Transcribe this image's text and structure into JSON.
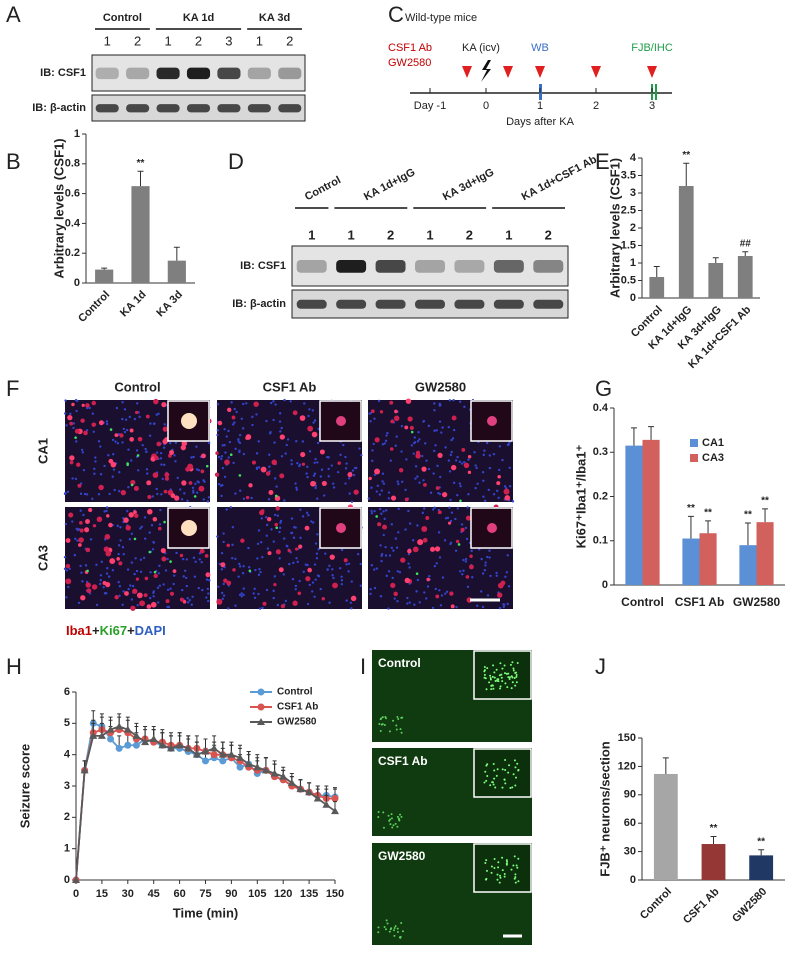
{
  "panel_labels": [
    "A",
    "B",
    "C",
    "D",
    "E",
    "F",
    "G",
    "H",
    "I",
    "J"
  ],
  "blot_a": {
    "groups": [
      "Control",
      "KA 1d",
      "KA 3d"
    ],
    "lanes": [
      "1",
      "2",
      "1",
      "2",
      "3",
      "1",
      "2"
    ],
    "rows": [
      "IB: CSF1",
      "IB: β-actin"
    ]
  },
  "blot_d": {
    "groups": [
      "Control",
      "KA 1d+IgG",
      "KA 3d+IgG",
      "KA 1d+CSF1 Ab"
    ],
    "lanes": [
      "1",
      "1",
      "2",
      "1",
      "2",
      "1",
      "2"
    ],
    "rows": [
      "IB: CSF1",
      "IB: β-actin"
    ]
  },
  "timeline": {
    "title": "Wild-type mice",
    "treatments": [
      "CSF1 Ab",
      "GW2580"
    ],
    "injection": "KA (icv)",
    "assays": [
      "WB",
      "FJB/IHC"
    ],
    "days": [
      "Day -1",
      "0",
      "1",
      "2",
      "3"
    ],
    "axis_label": "Days after KA"
  },
  "micrograph_f": {
    "columns": [
      "Control",
      "CSF1 Ab",
      "GW2580"
    ],
    "rows": [
      "CA1",
      "CA3"
    ],
    "stain": [
      "Iba1",
      "+",
      "Ki67",
      "+",
      "DAPI"
    ]
  },
  "micrograph_i": {
    "labels": [
      "Control",
      "CSF1 Ab",
      "GW2580"
    ]
  },
  "chart_data": [
    {
      "type": "bar",
      "ylabel": "Arbitrary levels (CSF1)",
      "categories": [
        "Control",
        "KA 1d",
        "KA 3d"
      ],
      "values": [
        0.09,
        0.65,
        0.15
      ],
      "errors": [
        0.01,
        0.1,
        0.09
      ],
      "marks": [
        null,
        "**",
        null
      ],
      "color": "#7f7f7f",
      "ylim": [
        0,
        1
      ],
      "yticks": [
        0,
        0.2,
        0.4,
        0.6,
        0.8,
        1
      ]
    },
    {
      "type": "bar",
      "ylabel": "Arbitrary levels (CSF1)",
      "categories": [
        "Control",
        "KA 1d+IgG",
        "KA 3d+IgG",
        "KA 1d+CSF1 Ab"
      ],
      "values": [
        0.6,
        3.2,
        1.0,
        1.2
      ],
      "errors": [
        0.3,
        0.65,
        0.15,
        0.12
      ],
      "marks": [
        null,
        "**",
        null,
        "##"
      ],
      "color": "#7f7f7f",
      "ylim": [
        0,
        4
      ],
      "yticks": [
        0,
        0.5,
        1,
        1.5,
        2,
        2.5,
        3,
        3.5,
        4
      ]
    },
    {
      "type": "bar",
      "ylabel": "Ki67⁺Iba1⁺/Iba1⁺",
      "categories": [
        "Control",
        "CSF1 Ab",
        "GW2580"
      ],
      "legend": "upper right",
      "series": [
        {
          "name": "CA1",
          "color": "#5b8fd6",
          "values": [
            0.315,
            0.105,
            0.09
          ],
          "errors": [
            0.04,
            0.05,
            0.05
          ],
          "marks": [
            null,
            "**",
            "**"
          ]
        },
        {
          "name": "CA3",
          "color": "#d2605c",
          "values": [
            0.328,
            0.117,
            0.142
          ],
          "errors": [
            0.03,
            0.028,
            0.03
          ],
          "marks": [
            null,
            "**",
            "**"
          ]
        }
      ],
      "ylim": [
        0,
        0.4
      ],
      "yticks": [
        0,
        0.1,
        0.2,
        0.3,
        0.4
      ]
    },
    {
      "type": "line",
      "ylabel": "Seizure score",
      "xlabel": "Time (min)",
      "legend": "upper right",
      "x": [
        0,
        5,
        10,
        15,
        20,
        25,
        30,
        35,
        40,
        45,
        50,
        55,
        60,
        65,
        70,
        75,
        80,
        85,
        90,
        95,
        100,
        105,
        110,
        115,
        120,
        125,
        130,
        135,
        140,
        145,
        150
      ],
      "series": [
        {
          "name": "Control",
          "color": "#5b9bd5",
          "marker": "circle",
          "values": [
            0,
            3.5,
            5.0,
            4.9,
            4.5,
            4.2,
            4.3,
            4.3,
            4.5,
            4.4,
            4.3,
            4.2,
            4.2,
            4.1,
            4.0,
            3.8,
            3.9,
            3.8,
            3.9,
            3.6,
            3.7,
            3.4,
            3.5,
            3.3,
            3.2,
            3.0,
            2.9,
            2.8,
            2.7,
            2.7,
            2.65
          ],
          "errors": [
            0,
            0.3,
            0.4,
            0.4,
            0.4,
            0.4,
            0.4,
            0.4,
            0.4,
            0.4,
            0.4,
            0.4,
            0.4,
            0.4,
            0.4,
            0.4,
            0.4,
            0.4,
            0.4,
            0.4,
            0.4,
            0.4,
            0.4,
            0.4,
            0.3,
            0.3,
            0.3,
            0.3,
            0.3,
            0.3,
            0.3
          ]
        },
        {
          "name": "CSF1 Ab",
          "color": "#d9534f",
          "marker": "circle",
          "values": [
            0,
            3.5,
            4.7,
            4.8,
            4.7,
            4.8,
            4.7,
            4.5,
            4.5,
            4.4,
            4.4,
            4.3,
            4.3,
            4.2,
            4.2,
            4.1,
            4.0,
            4.0,
            3.9,
            3.8,
            3.6,
            3.5,
            3.5,
            3.3,
            3.2,
            3.0,
            2.9,
            2.8,
            2.7,
            2.6,
            2.6
          ],
          "errors": [
            0,
            0.3,
            0.4,
            0.4,
            0.4,
            0.4,
            0.4,
            0.4,
            0.4,
            0.4,
            0.4,
            0.4,
            0.4,
            0.4,
            0.4,
            0.4,
            0.4,
            0.4,
            0.4,
            0.4,
            0.4,
            0.4,
            0.4,
            0.4,
            0.3,
            0.3,
            0.3,
            0.3,
            0.3,
            0.3,
            0.3
          ]
        },
        {
          "name": "GW2580",
          "color": "#595959",
          "marker": "triangle",
          "values": [
            0,
            3.5,
            4.6,
            4.6,
            4.8,
            4.9,
            4.8,
            4.6,
            4.4,
            4.5,
            4.3,
            4.2,
            4.3,
            4.2,
            4.0,
            4.1,
            4.2,
            4.0,
            4.0,
            3.9,
            3.7,
            3.6,
            3.5,
            3.4,
            3.3,
            3.1,
            2.9,
            2.8,
            2.6,
            2.4,
            2.2
          ],
          "errors": [
            0,
            0.3,
            0.4,
            0.4,
            0.4,
            0.4,
            0.4,
            0.4,
            0.4,
            0.4,
            0.4,
            0.4,
            0.4,
            0.4,
            0.4,
            0.4,
            0.4,
            0.4,
            0.4,
            0.4,
            0.4,
            0.4,
            0.4,
            0.4,
            0.3,
            0.3,
            0.3,
            0.3,
            0.3,
            0.3,
            0.3
          ]
        }
      ],
      "xlim": [
        0,
        150
      ],
      "xticks": [
        0,
        15,
        30,
        45,
        60,
        75,
        90,
        105,
        120,
        135,
        150
      ],
      "ylim": [
        0,
        6
      ],
      "yticks": [
        0,
        1,
        2,
        3,
        4,
        5,
        6
      ]
    },
    {
      "type": "bar",
      "ylabel": "FJB⁺ neurons/section",
      "categories": [
        "Control",
        "CSF1 Ab",
        "GW2580"
      ],
      "values": [
        112,
        38,
        26
      ],
      "errors": [
        17,
        8,
        6
      ],
      "marks": [
        null,
        "**",
        "**"
      ],
      "colors": [
        "#a6a6a6",
        "#953735",
        "#1f3864"
      ],
      "ylim": [
        0,
        150
      ],
      "yticks": [
        0,
        30,
        60,
        90,
        120,
        150
      ]
    }
  ]
}
